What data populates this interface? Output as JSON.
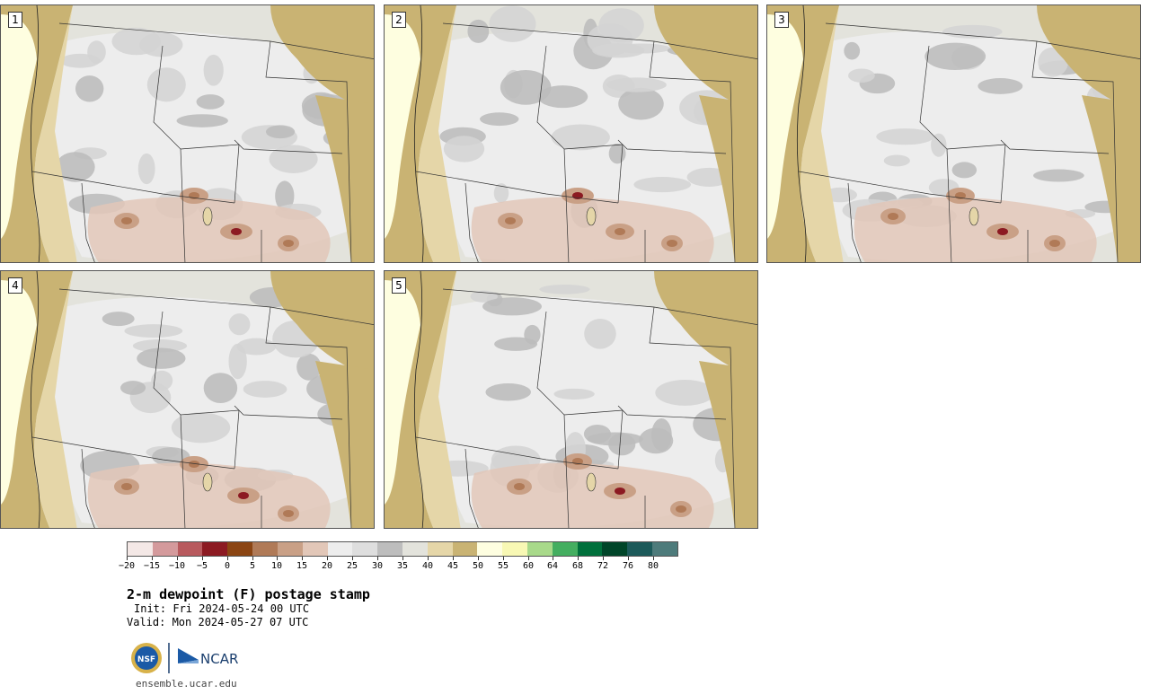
{
  "panels": [
    {
      "label": "1"
    },
    {
      "label": "2"
    },
    {
      "label": "3"
    },
    {
      "label": "4"
    },
    {
      "label": "5"
    }
  ],
  "colorbar": {
    "colors": [
      "#f4e8e6",
      "#d49a9c",
      "#b85a5e",
      "#8c1a22",
      "#8b4513",
      "#b07a57",
      "#c9a086",
      "#e2c7b8",
      "#ededed",
      "#dedede",
      "#bdbdbd",
      "#e3e3dc",
      "#e5d6a8",
      "#c9b373",
      "#fefee0",
      "#f8f8b4",
      "#a8d98a",
      "#44ae60",
      "#00703c",
      "#004529",
      "#1c5a5a",
      "#4e7b7b"
    ],
    "tick_labels": [
      "−20",
      "−15",
      "−10",
      "−5",
      "0",
      "5",
      "10",
      "15",
      "20",
      "25",
      "30",
      "35",
      "40",
      "45",
      "50",
      "55",
      "60",
      "64",
      "68",
      "72",
      "76",
      "80"
    ]
  },
  "title": "2-m dewpoint (F) postage stamp",
  "init": "Init: Fri 2024-05-24 00 UTC",
  "valid": "Valid: Mon 2024-05-27 07 UTC",
  "logos": {
    "nsf": "NSF",
    "ncar": "NCAR"
  },
  "site": "ensemble.ucar.edu"
}
